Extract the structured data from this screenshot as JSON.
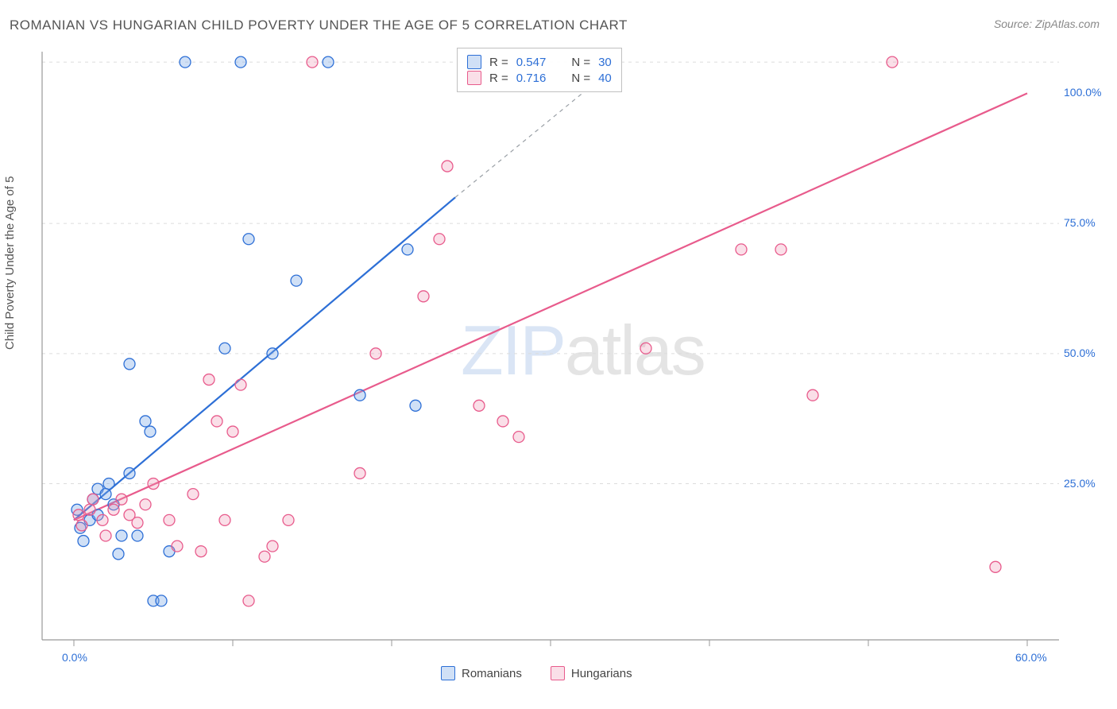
{
  "title": "ROMANIAN VS HUNGARIAN CHILD POVERTY UNDER THE AGE OF 5 CORRELATION CHART",
  "source_label": "Source: ZipAtlas.com",
  "y_axis_label": "Child Poverty Under the Age of 5",
  "watermark": {
    "left": "ZIP",
    "right": "atlas"
  },
  "chart": {
    "type": "scatter-correlation",
    "background_color": "#ffffff",
    "grid_color": "#dcdcdc",
    "axis_line_color": "#999999",
    "tick_line_color": "#999999",
    "xlim": [
      -2,
      62
    ],
    "ylim": [
      -5,
      108
    ],
    "x_axis_tick_labels": [
      {
        "value": 0,
        "label": "0.0%"
      },
      {
        "value": 60,
        "label": "60.0%"
      }
    ],
    "y_axis_tick_labels": [
      {
        "value": 25,
        "label": "25.0%"
      },
      {
        "value": 50,
        "label": "50.0%"
      },
      {
        "value": 75,
        "label": "75.0%"
      },
      {
        "value": 100,
        "label": "100.0%"
      }
    ],
    "y_grid_values": [
      25,
      50,
      75,
      106
    ],
    "x_minor_ticks": [
      10,
      20,
      30,
      40,
      50
    ],
    "series": [
      {
        "name": "Romanians",
        "stroke": "#2d6fd6",
        "fill": "rgba(120,165,230,0.35)",
        "r_value": "0.547",
        "n_value": "30",
        "marker_radius": 7,
        "trend": {
          "x1": 0,
          "y1": 18,
          "x2": 24,
          "y2": 80,
          "dashed_ext": {
            "x2": 32,
            "y2": 100
          }
        },
        "points": [
          {
            "x": 0.2,
            "y": 20
          },
          {
            "x": 0.4,
            "y": 16.5
          },
          {
            "x": 0.6,
            "y": 14
          },
          {
            "x": 1.0,
            "y": 18
          },
          {
            "x": 1.2,
            "y": 22
          },
          {
            "x": 1.5,
            "y": 24
          },
          {
            "x": 1.5,
            "y": 19
          },
          {
            "x": 2.0,
            "y": 23
          },
          {
            "x": 2.2,
            "y": 25
          },
          {
            "x": 2.5,
            "y": 21
          },
          {
            "x": 2.8,
            "y": 11.5
          },
          {
            "x": 3.0,
            "y": 15
          },
          {
            "x": 3.5,
            "y": 27
          },
          {
            "x": 3.5,
            "y": 48
          },
          {
            "x": 4.0,
            "y": 15
          },
          {
            "x": 4.5,
            "y": 37
          },
          {
            "x": 4.8,
            "y": 35
          },
          {
            "x": 5.0,
            "y": 2.5
          },
          {
            "x": 5.5,
            "y": 2.5
          },
          {
            "x": 6.0,
            "y": 12
          },
          {
            "x": 7.0,
            "y": 106
          },
          {
            "x": 9.5,
            "y": 51
          },
          {
            "x": 10.5,
            "y": 106
          },
          {
            "x": 11.0,
            "y": 72
          },
          {
            "x": 12.5,
            "y": 50
          },
          {
            "x": 14.0,
            "y": 64
          },
          {
            "x": 16.0,
            "y": 106
          },
          {
            "x": 21.0,
            "y": 70
          },
          {
            "x": 21.5,
            "y": 40
          },
          {
            "x": 18.0,
            "y": 42
          }
        ]
      },
      {
        "name": "Hungarians",
        "stroke": "#e85b8c",
        "fill": "rgba(240,150,180,0.30)",
        "r_value": "0.716",
        "n_value": "40",
        "marker_radius": 7,
        "trend": {
          "x1": 0,
          "y1": 18,
          "x2": 60,
          "y2": 100
        },
        "points": [
          {
            "x": 0.3,
            "y": 19
          },
          {
            "x": 0.5,
            "y": 17
          },
          {
            "x": 1.0,
            "y": 20
          },
          {
            "x": 1.2,
            "y": 22
          },
          {
            "x": 1.8,
            "y": 18
          },
          {
            "x": 2.0,
            "y": 15
          },
          {
            "x": 2.5,
            "y": 20
          },
          {
            "x": 3.0,
            "y": 22
          },
          {
            "x": 3.5,
            "y": 19
          },
          {
            "x": 4.0,
            "y": 17.5
          },
          {
            "x": 4.5,
            "y": 21
          },
          {
            "x": 5.0,
            "y": 25
          },
          {
            "x": 6.0,
            "y": 18
          },
          {
            "x": 6.5,
            "y": 13
          },
          {
            "x": 7.5,
            "y": 23
          },
          {
            "x": 8.0,
            "y": 12
          },
          {
            "x": 8.5,
            "y": 45
          },
          {
            "x": 9.0,
            "y": 37
          },
          {
            "x": 9.5,
            "y": 18
          },
          {
            "x": 10.0,
            "y": 35
          },
          {
            "x": 10.5,
            "y": 44
          },
          {
            "x": 11.0,
            "y": 2.5
          },
          {
            "x": 12.0,
            "y": 11
          },
          {
            "x": 12.5,
            "y": 13
          },
          {
            "x": 13.5,
            "y": 18
          },
          {
            "x": 15.0,
            "y": 106
          },
          {
            "x": 18.0,
            "y": 27
          },
          {
            "x": 19.0,
            "y": 50
          },
          {
            "x": 22.0,
            "y": 61
          },
          {
            "x": 23.0,
            "y": 72
          },
          {
            "x": 23.5,
            "y": 86
          },
          {
            "x": 25.5,
            "y": 40
          },
          {
            "x": 27.0,
            "y": 37
          },
          {
            "x": 28.0,
            "y": 34
          },
          {
            "x": 36.0,
            "y": 51
          },
          {
            "x": 42.0,
            "y": 70
          },
          {
            "x": 44.5,
            "y": 70
          },
          {
            "x": 46.5,
            "y": 42
          },
          {
            "x": 51.5,
            "y": 106
          },
          {
            "x": 58.0,
            "y": 9
          }
        ]
      }
    ],
    "stats_box": {
      "rows": [
        {
          "swatch_fill": "rgba(120,165,230,0.35)",
          "swatch_stroke": "#2d6fd6",
          "r_label": "R =",
          "r": "0.547",
          "n_label": "N =",
          "n": "30"
        },
        {
          "swatch_fill": "rgba(240,150,180,0.30)",
          "swatch_stroke": "#e85b8c",
          "r_label": "R =",
          "r": "0.716",
          "n_label": "N =",
          "n": "40"
        }
      ]
    },
    "bottom_legend": [
      {
        "swatch_fill": "rgba(120,165,230,0.35)",
        "swatch_stroke": "#2d6fd6",
        "label": "Romanians"
      },
      {
        "swatch_fill": "rgba(240,150,180,0.30)",
        "swatch_stroke": "#e85b8c",
        "label": "Hungarians"
      }
    ]
  }
}
